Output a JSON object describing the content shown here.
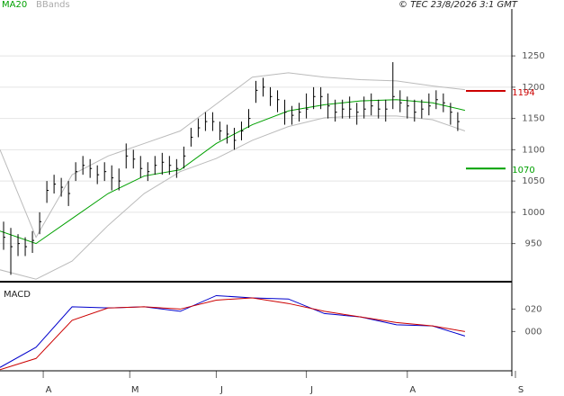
{
  "chart_data": [
    {
      "type": "ohlc",
      "legend": [
        "MA20",
        "BBands"
      ],
      "credit": "© TEC 23/8/2026 3:1 GMT",
      "x": [
        1,
        3,
        5,
        7,
        9,
        11,
        13,
        15,
        17,
        19,
        21,
        23,
        25,
        27,
        29,
        31,
        33,
        35,
        37,
        39,
        41,
        43,
        45,
        47,
        49,
        51,
        53,
        55,
        57,
        59,
        61,
        63,
        65,
        67,
        69,
        71,
        73,
        75,
        77,
        79,
        81,
        83,
        85,
        87,
        89,
        91,
        93,
        95,
        97,
        99,
        101,
        103,
        105,
        107,
        109,
        111,
        113,
        115,
        117,
        119,
        121,
        123,
        125,
        127
      ],
      "high": [
        985,
        975,
        965,
        960,
        970,
        1000,
        1050,
        1060,
        1055,
        1050,
        1080,
        1090,
        1085,
        1075,
        1080,
        1075,
        1070,
        1110,
        1100,
        1090,
        1080,
        1090,
        1095,
        1090,
        1085,
        1105,
        1135,
        1150,
        1160,
        1160,
        1145,
        1140,
        1135,
        1145,
        1165,
        1210,
        1215,
        1200,
        1195,
        1180,
        1170,
        1175,
        1190,
        1200,
        1200,
        1190,
        1180,
        1180,
        1185,
        1175,
        1185,
        1190,
        1180,
        1180,
        1240,
        1195,
        1185,
        1180,
        1180,
        1190,
        1195,
        1190,
        1175,
        1160
      ],
      "low": [
        940,
        900,
        930,
        930,
        935,
        965,
        1015,
        1030,
        1025,
        1010,
        1050,
        1060,
        1055,
        1045,
        1050,
        1035,
        1035,
        1070,
        1070,
        1055,
        1050,
        1060,
        1060,
        1060,
        1055,
        1070,
        1105,
        1120,
        1130,
        1130,
        1115,
        1110,
        1100,
        1115,
        1135,
        1175,
        1185,
        1170,
        1160,
        1140,
        1140,
        1145,
        1150,
        1165,
        1165,
        1150,
        1145,
        1150,
        1150,
        1140,
        1150,
        1155,
        1150,
        1145,
        1165,
        1160,
        1150,
        1145,
        1150,
        1155,
        1165,
        1160,
        1140,
        1130
      ],
      "close": [
        960,
        945,
        950,
        945,
        955,
        985,
        1035,
        1045,
        1040,
        1030,
        1065,
        1075,
        1070,
        1060,
        1065,
        1055,
        1050,
        1090,
        1085,
        1070,
        1065,
        1075,
        1080,
        1075,
        1070,
        1090,
        1120,
        1135,
        1145,
        1145,
        1130,
        1125,
        1115,
        1130,
        1150,
        1195,
        1200,
        1185,
        1180,
        1160,
        1155,
        1160,
        1165,
        1185,
        1185,
        1170,
        1160,
        1165,
        1165,
        1160,
        1165,
        1170,
        1165,
        1165,
        1185,
        1175,
        1170,
        1160,
        1165,
        1170,
        1180,
        1175,
        1160,
        1145
      ],
      "bar_color": "#000000",
      "series": [
        {
          "name": "MA20",
          "color": "#00a000",
          "x": [
            0,
            10,
            20,
            30,
            40,
            50,
            60,
            70,
            80,
            90,
            100,
            110,
            120,
            129
          ],
          "values": [
            970,
            950,
            990,
            1030,
            1058,
            1068,
            1110,
            1140,
            1162,
            1172,
            1178,
            1180,
            1175,
            1163
          ]
        },
        {
          "name": "BBands",
          "color": "#bbbbbb",
          "x": [
            0,
            10,
            20,
            30,
            40,
            50,
            60,
            70,
            80,
            90,
            100,
            110,
            120,
            129
          ],
          "values": [
            1100,
            960,
            1060,
            1090,
            1110,
            1130,
            1173,
            1216,
            1223,
            1216,
            1212,
            1210,
            1202,
            1196
          ]
        },
        {
          "name": "BBands",
          "color": "#bbbbbb",
          "x": [
            0,
            10,
            20,
            30,
            40,
            50,
            60,
            70,
            80,
            90,
            100,
            110,
            120,
            129
          ],
          "values": [
            908,
            893,
            922,
            979,
            1030,
            1065,
            1086,
            1115,
            1137,
            1151,
            1154,
            1154,
            1148,
            1130
          ]
        }
      ],
      "levels": [
        {
          "value": 1194,
          "color": "#cc0000"
        },
        {
          "value": 1070,
          "color": "#00a000"
        }
      ],
      "xlim": [
        0,
        142
      ],
      "ylim": [
        889,
        1325
      ],
      "yticks": [
        950,
        1000,
        1050,
        1100,
        1150,
        1200,
        1250
      ],
      "grid": true
    },
    {
      "type": "line",
      "title": "MACD",
      "x": [
        0,
        10,
        20,
        30,
        40,
        50,
        60,
        70,
        80,
        90,
        100,
        110,
        120,
        129
      ],
      "series": [
        {
          "color": "#0000cc",
          "values": [
            -32,
            -14,
            22,
            21,
            22,
            18,
            32,
            30,
            29,
            16,
            13,
            6,
            5,
            -4
          ]
        },
        {
          "color": "#cc0000",
          "values": [
            -34,
            -24,
            10,
            21,
            22,
            20,
            28,
            30,
            25,
            18,
            13,
            8,
            5,
            0
          ]
        }
      ],
      "xlim": [
        0,
        142
      ],
      "ylim": [
        -35,
        42
      ],
      "yticks": [
        {
          "value": 0,
          "label": "000"
        },
        {
          "value": 20,
          "label": "020"
        }
      ],
      "xticks": [
        {
          "value": 12,
          "label": "A"
        },
        {
          "value": 36,
          "label": "M"
        },
        {
          "value": 60,
          "label": "J"
        },
        {
          "value": 85,
          "label": "J"
        },
        {
          "value": 113,
          "label": "A"
        },
        {
          "value": 143,
          "label": "S"
        }
      ]
    }
  ]
}
